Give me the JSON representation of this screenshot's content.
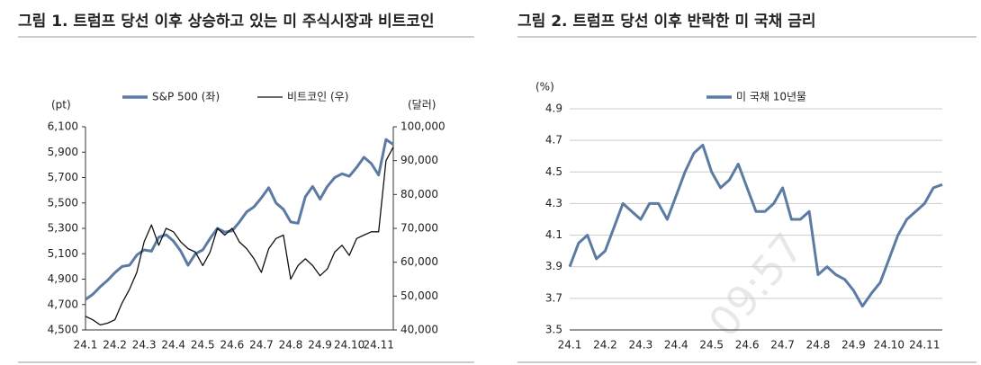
{
  "chart_data": [
    {
      "type": "line",
      "title": "그림 1. 트럼프 당선 이후 상승하고 있는 미 주식시장과 비트코인",
      "y_unit": "(pt)",
      "y2_unit": "(달러)",
      "legend": "top",
      "grid": false,
      "categories": [
        "24.1",
        null,
        null,
        null,
        "24.2",
        null,
        null,
        null,
        "24.3",
        null,
        null,
        null,
        "24.4",
        null,
        null,
        null,
        "24.5",
        null,
        null,
        null,
        "24.6",
        null,
        null,
        null,
        "24.7",
        null,
        null,
        null,
        "24.8",
        null,
        null,
        null,
        "24.9",
        null,
        null,
        null,
        "24.10",
        null,
        null,
        null,
        "24.11",
        null,
        null
      ],
      "series": [
        {
          "name": "S&P 500 (좌)",
          "color": "#5b7ba3",
          "values": [
            4740,
            4780,
            4840,
            4890,
            4950,
            5000,
            5010,
            5090,
            5130,
            5120,
            5230,
            5250,
            5200,
            5120,
            5010,
            5100,
            5130,
            5220,
            5300,
            5270,
            5280,
            5350,
            5430,
            5470,
            5540,
            5620,
            5500,
            5450,
            5350,
            5340,
            5550,
            5630,
            5530,
            5630,
            5700,
            5730,
            5710,
            5780,
            5860,
            5810,
            5720,
            6000,
            5960
          ]
        },
        {
          "name": "비트코인 (우)",
          "color": "#111111",
          "axis": "y2",
          "values": [
            44000,
            43000,
            41500,
            42000,
            43000,
            48000,
            52000,
            57000,
            66000,
            71000,
            65000,
            70000,
            69000,
            66000,
            64000,
            63000,
            59000,
            63000,
            70000,
            68000,
            70000,
            66000,
            64000,
            61000,
            57000,
            64000,
            67000,
            68000,
            55000,
            59000,
            61000,
            59000,
            56000,
            58000,
            63000,
            65000,
            62000,
            67000,
            68000,
            69000,
            69000,
            90000,
            94000
          ]
        }
      ],
      "ylim": [
        4500,
        6100
      ],
      "yticks": [
        {
          "value": 4500,
          "label": "4,500"
        },
        {
          "value": 4700,
          "label": "4,700"
        },
        {
          "value": 4900,
          "label": "4,900"
        },
        {
          "value": 5100,
          "label": "5,100"
        },
        {
          "value": 5300,
          "label": "5,300"
        },
        {
          "value": 5500,
          "label": "5,500"
        },
        {
          "value": 5700,
          "label": "5,700"
        },
        {
          "value": 5900,
          "label": "5,900"
        },
        {
          "value": 6100,
          "label": "6,100"
        }
      ],
      "y2lim": [
        40000,
        100000
      ],
      "y2ticks": [
        {
          "value": 40000,
          "label": "40,000"
        },
        {
          "value": 50000,
          "label": "50,000"
        },
        {
          "value": 60000,
          "label": "60,000"
        },
        {
          "value": 70000,
          "label": "70,000"
        },
        {
          "value": 80000,
          "label": "80,000"
        },
        {
          "value": 90000,
          "label": "90,000"
        },
        {
          "value": 100000,
          "label": "100,000"
        }
      ]
    },
    {
      "type": "line",
      "title": "그림 2. 트럼프 당선 이후 반락한 미 국채 금리",
      "y_unit": "(%)",
      "legend": "top",
      "grid": true,
      "categories": [
        "24.1",
        null,
        null,
        null,
        "24.2",
        null,
        null,
        null,
        "24.3",
        null,
        null,
        null,
        "24.4",
        null,
        null,
        null,
        "24.5",
        null,
        null,
        null,
        "24.6",
        null,
        null,
        null,
        "24.7",
        null,
        null,
        null,
        "24.8",
        null,
        null,
        null,
        "24.9",
        null,
        null,
        null,
        "24.10",
        null,
        null,
        null,
        "24.11",
        null,
        null
      ],
      "series": [
        {
          "name": "미 국채 10년물",
          "color": "#5b7ba3",
          "values": [
            3.9,
            4.05,
            4.1,
            3.95,
            4.0,
            4.15,
            4.3,
            4.25,
            4.2,
            4.3,
            4.3,
            4.2,
            4.35,
            4.5,
            4.62,
            4.67,
            4.5,
            4.4,
            4.45,
            4.55,
            4.4,
            4.25,
            4.25,
            4.3,
            4.4,
            4.2,
            4.2,
            4.25,
            3.85,
            3.9,
            3.85,
            3.82,
            3.75,
            3.65,
            3.73,
            3.8,
            3.95,
            4.1,
            4.2,
            4.25,
            4.3,
            4.4,
            4.42
          ]
        }
      ],
      "ylim": [
        3.5,
        4.9
      ],
      "yticks": [
        3.5,
        3.7,
        3.9,
        4.1,
        4.3,
        4.5,
        4.7,
        4.9
      ]
    }
  ],
  "watermark": "09:57"
}
